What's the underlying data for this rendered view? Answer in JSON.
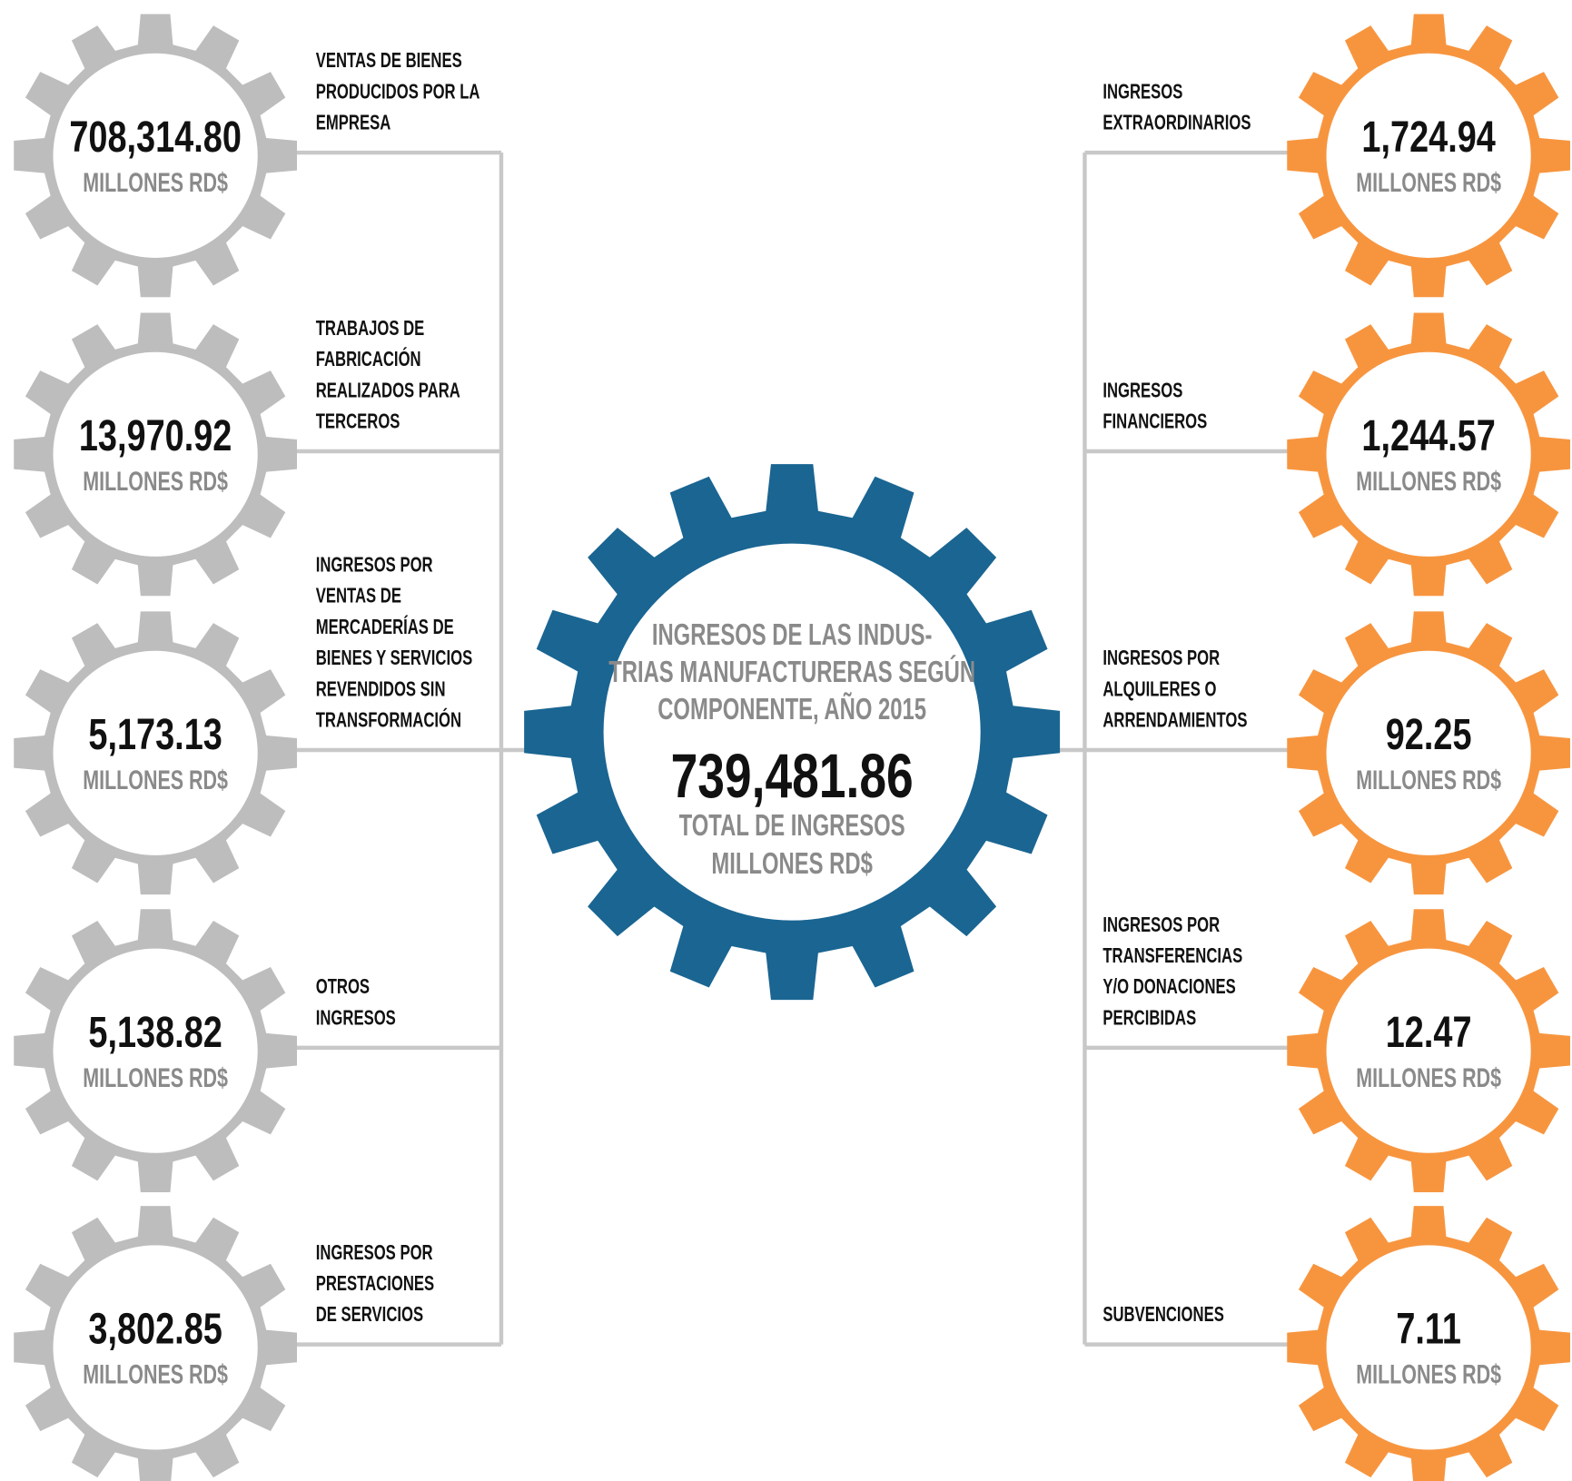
{
  "center": {
    "title_lines": [
      "INGRESOS DE LAS INDUS-",
      "TRIAS MANUFACTURERAS SEGÚN",
      "COMPONENTE, AÑO 2015"
    ],
    "total": "739,481.86",
    "total_label_lines": [
      "TOTAL DE INGRESOS",
      "MILLONES RD$"
    ]
  },
  "left_items": [
    {
      "value": "708,314.80",
      "unit": "MILLONES RD$",
      "label_lines": [
        "VENTAS DE BIENES",
        "PRODUCIDOS POR LA",
        "EMPRESA"
      ]
    },
    {
      "value": "13,970.92",
      "unit": "MILLONES RD$",
      "label_lines": [
        "TRABAJOS DE",
        "FABRICACIÓN",
        "REALIZADOS PARA",
        "TERCEROS"
      ]
    },
    {
      "value": "5,173.13",
      "unit": "MILLONES RD$",
      "label_lines": [
        "INGRESOS POR",
        "VENTAS DE",
        "MERCADERÍAS DE",
        "BIENES Y SERVICIOS",
        "REVENDIDOS SIN",
        "TRANSFORMACIÓN"
      ]
    },
    {
      "value": "5,138.82",
      "unit": "MILLONES RD$",
      "label_lines": [
        "OTROS",
        "INGRESOS"
      ]
    },
    {
      "value": "3,802.85",
      "unit": "MILLONES RD$",
      "label_lines": [
        "INGRESOS POR",
        "PRESTACIONES",
        "DE SERVICIOS"
      ]
    }
  ],
  "right_items": [
    {
      "value": "1,724.94",
      "unit": "MILLONES RD$",
      "label_lines": [
        "INGRESOS",
        "EXTRAORDINARIOS"
      ]
    },
    {
      "value": "1,244.57",
      "unit": "MILLONES RD$",
      "label_lines": [
        "INGRESOS",
        "FINANCIEROS"
      ]
    },
    {
      "value": "92.25",
      "unit": "MILLONES RD$",
      "label_lines": [
        "INGRESOS POR",
        "ALQUILERES O",
        "ARRENDAMIENTOS"
      ]
    },
    {
      "value": "12.47",
      "unit": "MILLONES RD$",
      "label_lines": [
        "INGRESOS POR",
        "TRANSFERENCIAS",
        "Y/O DONACIONES",
        "PERCIBIDAS"
      ]
    },
    {
      "value": "7.11",
      "unit": "MILLONES RD$",
      "label_lines": [
        "SUBVENCIONES"
      ]
    }
  ]
}
